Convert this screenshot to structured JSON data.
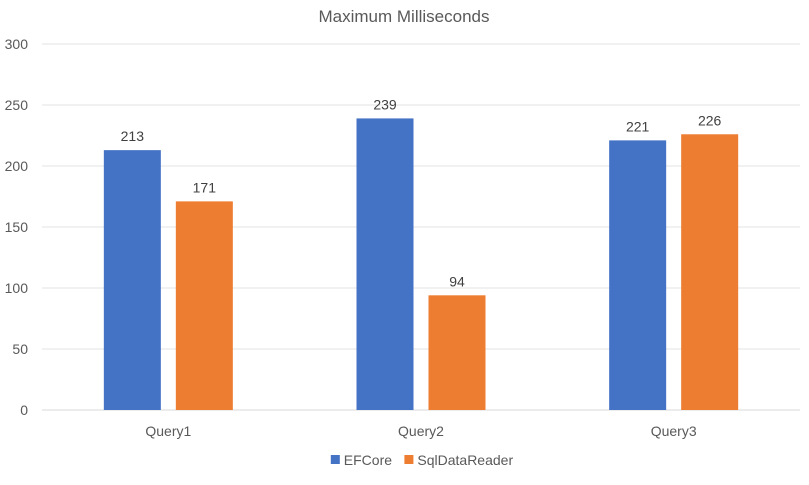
{
  "chart_data": {
    "type": "bar",
    "title": "Maximum Milliseconds",
    "xlabel": "",
    "ylabel": "",
    "categories": [
      "Query1",
      "Query2",
      "Query3"
    ],
    "series": [
      {
        "name": "EFCore",
        "values": [
          213,
          239,
          221
        ],
        "color": "#4472C4"
      },
      {
        "name": "SqlDataReader",
        "values": [
          171,
          94,
          226
        ],
        "color": "#ED7D31"
      }
    ],
    "ylim": [
      0,
      300
    ],
    "yticks": [
      0,
      50,
      100,
      150,
      200,
      250,
      300
    ],
    "grid": true,
    "legend": "bottom"
  }
}
